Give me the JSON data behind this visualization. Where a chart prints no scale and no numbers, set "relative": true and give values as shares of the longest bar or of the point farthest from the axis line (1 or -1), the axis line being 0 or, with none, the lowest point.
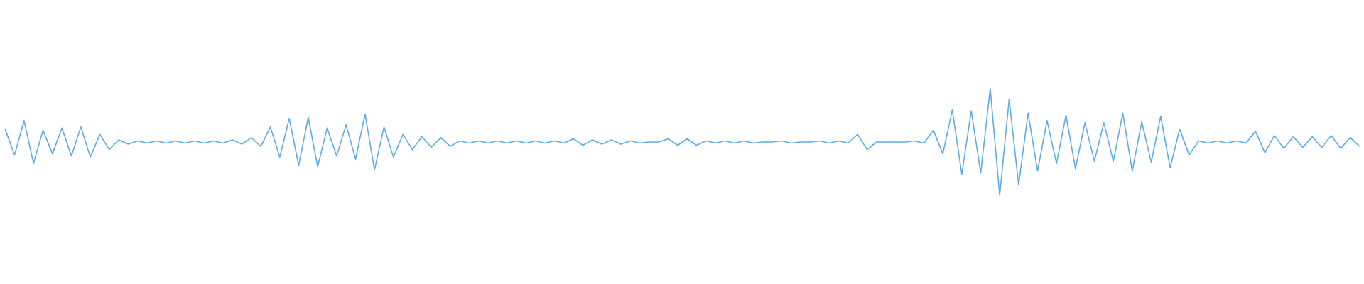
{
  "chart_data": {
    "type": "line",
    "relative": true,
    "categories": [
      null,
      null,
      null,
      null,
      null,
      null,
      null,
      null,
      null,
      null,
      null,
      null,
      null,
      null,
      null,
      null,
      null,
      null,
      null,
      null,
      null,
      null,
      null,
      null,
      null,
      null,
      null,
      null,
      null,
      null,
      null,
      null,
      null,
      null,
      null,
      null,
      null,
      null,
      null,
      null,
      null,
      null,
      null,
      null,
      null,
      null,
      null,
      null,
      null,
      null,
      null,
      null,
      null,
      null,
      null,
      null,
      null,
      null,
      null,
      null,
      null,
      null,
      null,
      null,
      null,
      null,
      null,
      null,
      null,
      null,
      null,
      null,
      null,
      null,
      null,
      null,
      null,
      null,
      null,
      null,
      null,
      null,
      null,
      null,
      null,
      null,
      null,
      null,
      null,
      null,
      null,
      null,
      null,
      null,
      null,
      null,
      null,
      null,
      null,
      null,
      null,
      null,
      null,
      null,
      null,
      null,
      null,
      null,
      null,
      null,
      null,
      null,
      null,
      null,
      null,
      null,
      null,
      null,
      null,
      null,
      null,
      null,
      null,
      null,
      null,
      null,
      null,
      null,
      null,
      null,
      null,
      null,
      null,
      null,
      null,
      null,
      null,
      null,
      null,
      null,
      null,
      null,
      null,
      null
    ],
    "series": [
      {
        "color": "#5dade2",
        "values": [
          0.62,
          0.38,
          0.7,
          0.3,
          0.61,
          0.39,
          0.63,
          0.37,
          0.64,
          0.36,
          0.57,
          0.43,
          0.52,
          0.48,
          0.51,
          0.49,
          0.51,
          0.49,
          0.51,
          0.49,
          0.51,
          0.49,
          0.51,
          0.49,
          0.52,
          0.48,
          0.54,
          0.46,
          0.64,
          0.36,
          0.72,
          0.28,
          0.73,
          0.27,
          0.63,
          0.37,
          0.66,
          0.34,
          0.76,
          0.24,
          0.64,
          0.36,
          0.57,
          0.43,
          0.55,
          0.45,
          0.54,
          0.46,
          0.51,
          0.49,
          0.51,
          0.49,
          0.51,
          0.49,
          0.51,
          0.49,
          0.51,
          0.49,
          0.51,
          0.49,
          0.53,
          0.47,
          0.52,
          0.48,
          0.52,
          0.48,
          0.51,
          0.49,
          0.5,
          0.5,
          0.53,
          0.47,
          0.53,
          0.47,
          0.51,
          0.49,
          0.51,
          0.49,
          0.51,
          0.49,
          0.5,
          0.5,
          0.51,
          0.49,
          0.5,
          0.5,
          0.51,
          0.49,
          0.51,
          0.49,
          0.57,
          0.43,
          0.5,
          0.5,
          0.5,
          0.5,
          0.51,
          0.49,
          0.61,
          0.39,
          0.8,
          0.2,
          0.79,
          0.21,
          1,
          0,
          0.9,
          0.1,
          0.77,
          0.23,
          0.7,
          0.3,
          0.75,
          0.25,
          0.68,
          0.32,
          0.68,
          0.32,
          0.77,
          0.23,
          0.69,
          0.31,
          0.74,
          0.26,
          0.62,
          0.38,
          0.51,
          0.49,
          0.51,
          0.49,
          0.51,
          0.49,
          0.6,
          0.4,
          0.56,
          0.44,
          0.55,
          0.45,
          0.55,
          0.45,
          0.56,
          0.44,
          0.54,
          0.46
        ]
      }
    ]
  }
}
